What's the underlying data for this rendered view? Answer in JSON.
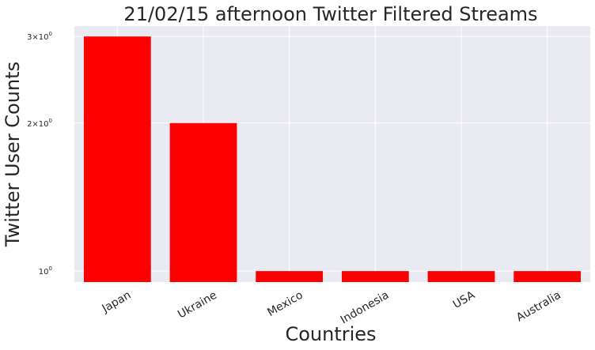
{
  "chart_data": {
    "type": "bar",
    "title": "21/02/15 afternoon Twitter Filtered Streams",
    "xlabel": "Countries",
    "ylabel": "Twitter User Counts",
    "categories": [
      "Japan",
      "Ukraine",
      "Mexico",
      "Indonesia",
      "USA",
      "Australia"
    ],
    "values": [
      3,
      2,
      1,
      1,
      1,
      1
    ],
    "yscale": "log",
    "ylim": [
      0.95,
      3.15
    ],
    "yticks": [
      {
        "value": 1,
        "base": "10",
        "exp": "0",
        "prefix": ""
      },
      {
        "value": 2,
        "base": "10",
        "exp": "0",
        "prefix": "2×"
      },
      {
        "value": 3,
        "base": "10",
        "exp": "0",
        "prefix": "3×"
      }
    ],
    "grid": true,
    "bar_color": "#ff0000",
    "background_color": "#eaeaf2",
    "grid_color": "#ffffff"
  }
}
